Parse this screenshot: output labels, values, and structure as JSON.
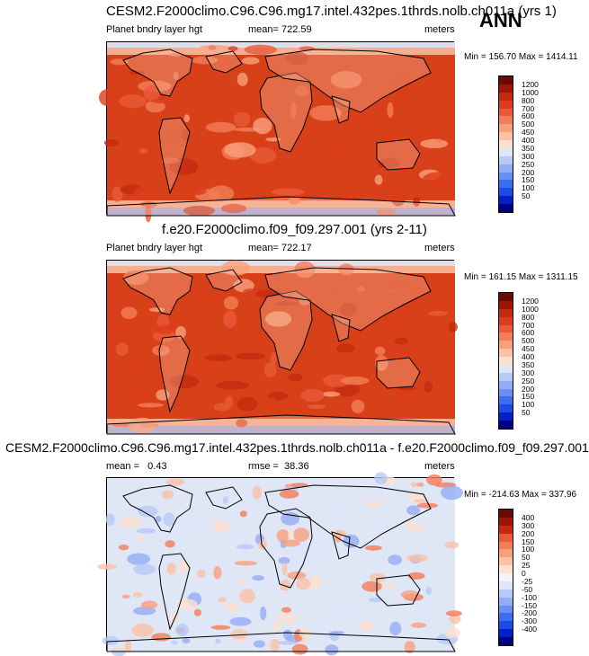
{
  "season": "ANN",
  "colors": {
    "abs_scale": [
      "#000080",
      "#0020c8",
      "#1a4be6",
      "#3c6ef0",
      "#6a8ff2",
      "#93adf4",
      "#b8c9f6",
      "#dde6fa",
      "#fde0cf",
      "#fbc2a6",
      "#f7a07c",
      "#f27d58",
      "#e95a38",
      "#dc3c1c",
      "#c42a0e",
      "#9a1606",
      "#6b0a02"
    ],
    "diff_scale": [
      "#000080",
      "#0020c8",
      "#1a4be6",
      "#3c6ef0",
      "#6a8ff2",
      "#93adf4",
      "#b8c9f6",
      "#dde6fa",
      "#f4f4f4",
      "#fde0cf",
      "#fbc2a6",
      "#f7a07c",
      "#f27d58",
      "#e95a38",
      "#c42a0e",
      "#9a1606",
      "#6b0a02"
    ],
    "ocean_abs": "#d8401a",
    "ocean_diff": "#dfe7f7"
  },
  "panels": [
    {
      "title": "CESM2.F2000climo.C96.C96.mg17.intel.432pes.1thrds.nolb.ch011a (yrs 1)",
      "left_label": "Planet bndry layer hgt",
      "center_label": "mean= 722.59",
      "right_label": "meters",
      "minmax": "Min = 156.70 Max = 1414.11",
      "levels": [
        "1200",
        "1000",
        "800",
        "700",
        "600",
        "500",
        "450",
        "400",
        "350",
        "300",
        "250",
        "200",
        "150",
        "100",
        "50"
      ]
    },
    {
      "title": "f.e20.F2000climo.f09_f09.297.001 (yrs 2-11)",
      "left_label": "Planet bndry layer hgt",
      "center_label": "mean= 722.17",
      "right_label": "meters",
      "minmax": "Min = 161.15 Max = 1311.15",
      "levels": [
        "1200",
        "1000",
        "800",
        "700",
        "600",
        "500",
        "450",
        "400",
        "350",
        "300",
        "250",
        "200",
        "150",
        "100",
        "50"
      ]
    },
    {
      "title": "CESM2.F2000climo.C96.C96.mg17.intel.432pes.1thrds.nolb.ch011a - f.e20.F2000climo.f09_f09.297.001",
      "left_label": "mean =   0.43",
      "center_label": "rmse =  38.36",
      "right_label": "meters",
      "minmax": "Min = -214.63 Max = 337.96",
      "levels": [
        "400",
        "300",
        "200",
        "150",
        "100",
        "50",
        "25",
        "0",
        "-25",
        "-50",
        "-100",
        "-150",
        "-200",
        "-300",
        "-400"
      ]
    }
  ]
}
